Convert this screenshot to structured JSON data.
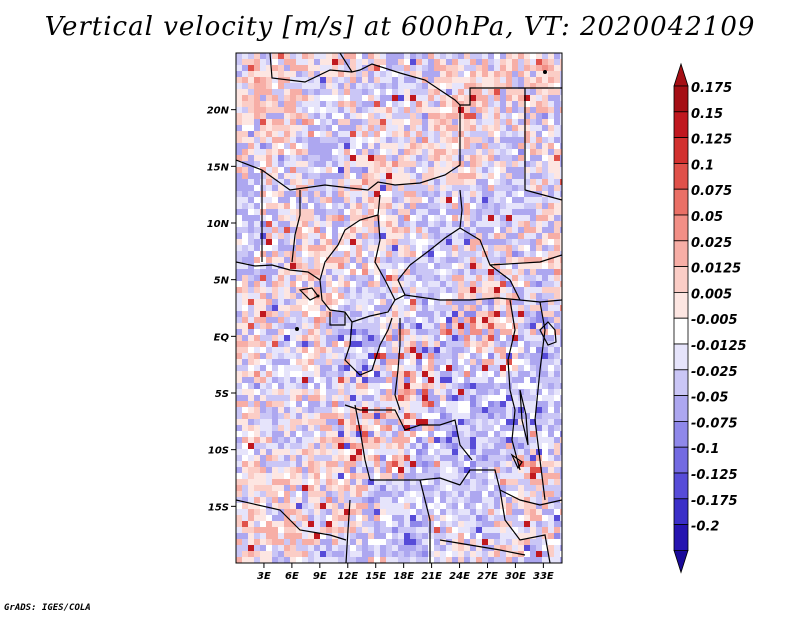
{
  "title": "Vertical velocity [m/s] at 600hPa, VT: 2020042109",
  "credit": "GrADS: IGES/COLA",
  "map": {
    "lon_range": [
      0,
      35
    ],
    "lat_range": [
      -20,
      25
    ],
    "lat_ticks": [
      {
        "value": 20,
        "label": "20N"
      },
      {
        "value": 15,
        "label": "15N"
      },
      {
        "value": 10,
        "label": "10N"
      },
      {
        "value": 5,
        "label": "5N"
      },
      {
        "value": 0,
        "label": "EQ"
      },
      {
        "value": -5,
        "label": "5S"
      },
      {
        "value": -10,
        "label": "10S"
      },
      {
        "value": -15,
        "label": "15S"
      }
    ],
    "lon_ticks": [
      {
        "value": 3,
        "label": "3E"
      },
      {
        "value": 6,
        "label": "6E"
      },
      {
        "value": 9,
        "label": "9E"
      },
      {
        "value": 12,
        "label": "12E"
      },
      {
        "value": 15,
        "label": "15E"
      },
      {
        "value": 18,
        "label": "18E"
      },
      {
        "value": 21,
        "label": "21E"
      },
      {
        "value": 24,
        "label": "24E"
      },
      {
        "value": 27,
        "label": "27E"
      },
      {
        "value": 30,
        "label": "30E"
      },
      {
        "value": 33,
        "label": "33E"
      }
    ]
  },
  "colorbar": {
    "levels": [
      {
        "label": "0.175",
        "color": "#a50f15"
      },
      {
        "label": "0.15",
        "color": "#c0181f"
      },
      {
        "label": "0.125",
        "color": "#d2312f"
      },
      {
        "label": "0.1",
        "color": "#e0514a"
      },
      {
        "label": "0.075",
        "color": "#ea7066"
      },
      {
        "label": "0.05",
        "color": "#f28f86"
      },
      {
        "label": "0.025",
        "color": "#f7aea6"
      },
      {
        "label": "0.0125",
        "color": "#fbcdc6"
      },
      {
        "label": "0.005",
        "color": "#fde6e2"
      },
      {
        "label": "-0.005",
        "color": "#ffffff"
      },
      {
        "label": "-0.0125",
        "color": "#e6e4fb"
      },
      {
        "label": "-0.025",
        "color": "#cac6f6"
      },
      {
        "label": "-0.05",
        "color": "#ada7f0"
      },
      {
        "label": "-0.075",
        "color": "#8f88ea"
      },
      {
        "label": "-0.1",
        "color": "#736ae2"
      },
      {
        "label": "-0.125",
        "color": "#574cd8"
      },
      {
        "label": "-0.175",
        "color": "#3b2fc8"
      },
      {
        "label": "-0.2",
        "color": "#2614b0"
      }
    ],
    "top_arrow_color": "#a50f15",
    "bottom_arrow_color": "#1a0a9a"
  }
}
